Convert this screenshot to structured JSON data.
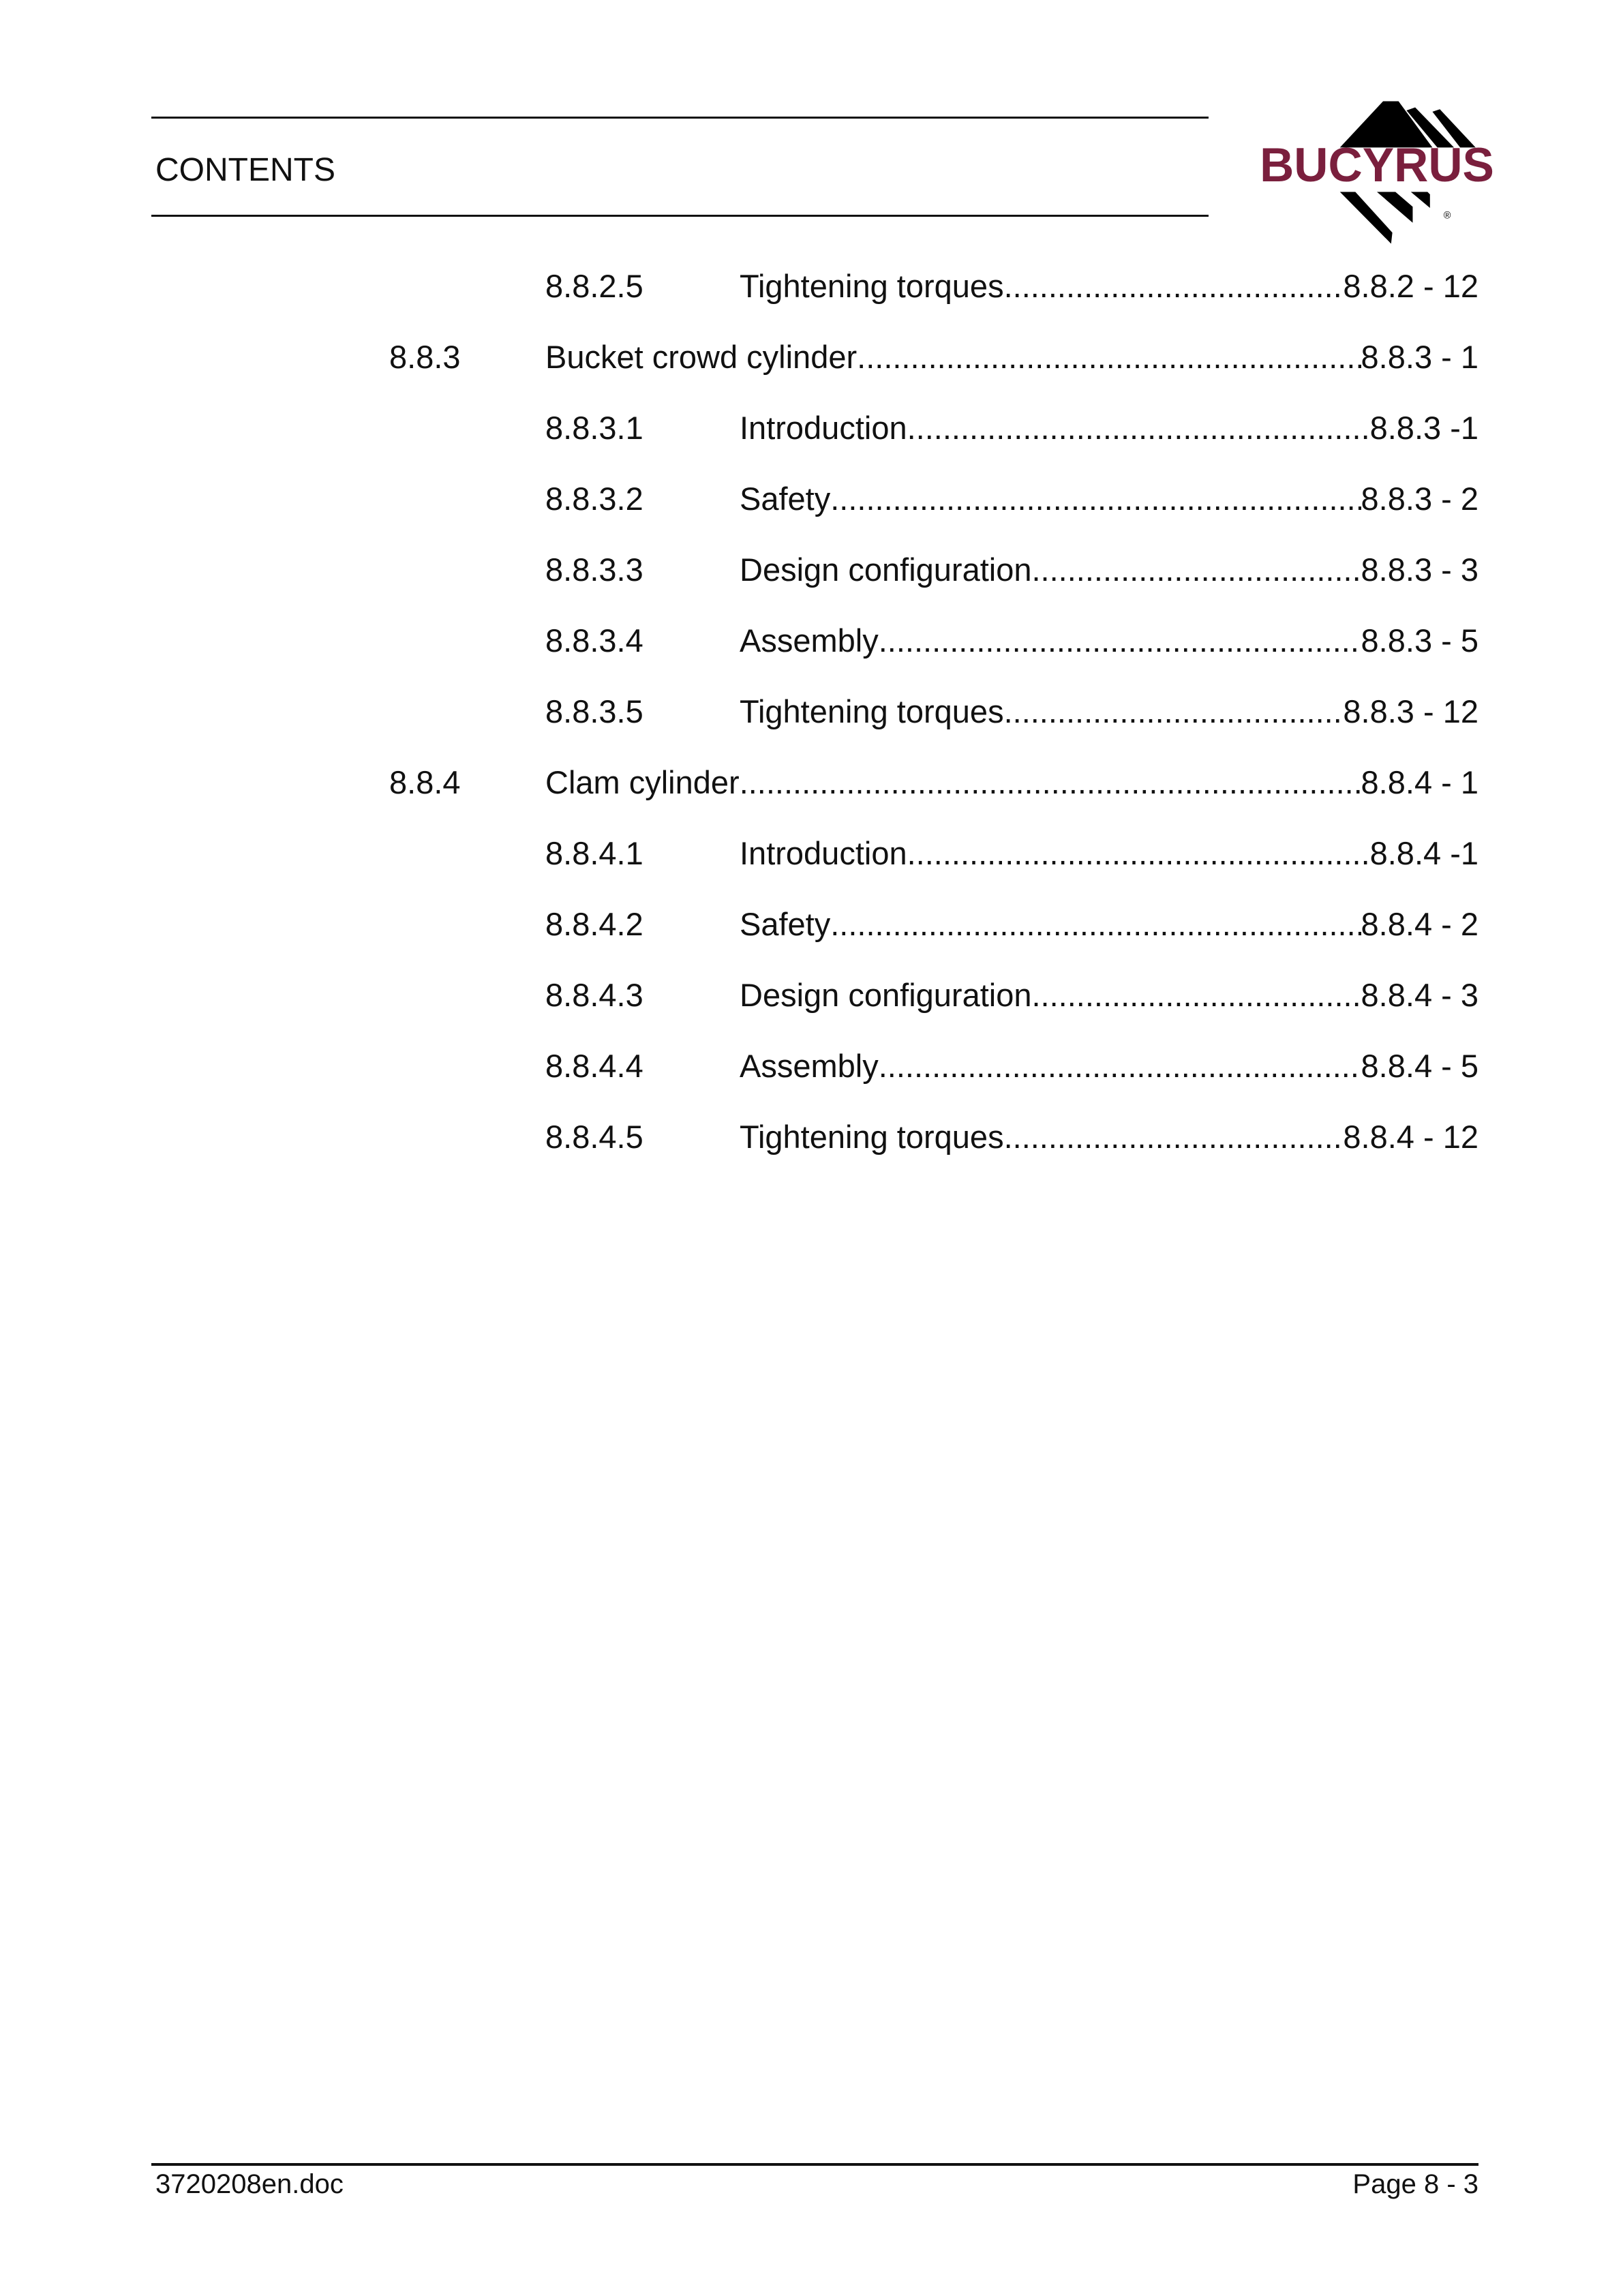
{
  "header": {
    "title": "CONTENTS",
    "logo_text": "BUCYRUS",
    "logo_mark": "®",
    "brand_color": "#7a1f3d"
  },
  "toc": [
    {
      "level": 3,
      "number": "8.8.2.5",
      "title": "Tightening torques",
      "page": "8.8.2 - 12"
    },
    {
      "level": 2,
      "number": "8.8.3",
      "title": "Bucket crowd cylinder",
      "page": "8.8.3 - 1"
    },
    {
      "level": 3,
      "number": "8.8.3.1",
      "title": "Introduction",
      "page": "8.8.3 -1"
    },
    {
      "level": 3,
      "number": "8.8.3.2",
      "title": "Safety",
      "page": "8.8.3 - 2"
    },
    {
      "level": 3,
      "number": "8.8.3.3",
      "title": "Design configuration",
      "page": "8.8.3 - 3"
    },
    {
      "level": 3,
      "number": "8.8.3.4",
      "title": "Assembly",
      "page": "8.8.3 - 5"
    },
    {
      "level": 3,
      "number": "8.8.3.5",
      "title": "Tightening torques",
      "page": "8.8.3 - 12"
    },
    {
      "level": 2,
      "number": "8.8.4",
      "title": "Clam cylinder",
      "page": "8.8.4 - 1"
    },
    {
      "level": 3,
      "number": "8.8.4.1",
      "title": "Introduction",
      "page": "8.8.4 -1"
    },
    {
      "level": 3,
      "number": "8.8.4.2",
      "title": "Safety",
      "page": "8.8.4 - 2"
    },
    {
      "level": 3,
      "number": "8.8.4.3",
      "title": "Design configuration",
      "page": "8.8.4 - 3"
    },
    {
      "level": 3,
      "number": "8.8.4.4",
      "title": "Assembly",
      "page": "8.8.4 - 5"
    },
    {
      "level": 3,
      "number": "8.8.4.5",
      "title": "Tightening torques",
      "page": "8.8.4 - 12"
    }
  ],
  "footer": {
    "filename": "3720208en.doc",
    "page": "Page 8 - 3"
  }
}
